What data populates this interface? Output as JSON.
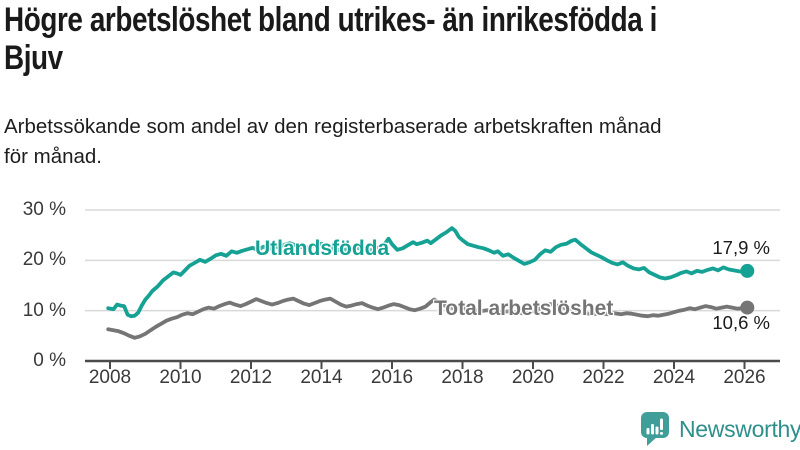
{
  "title": {
    "lines": [
      "Högre arbetslöshet bland utrikes- än inrikesfödda i",
      "Bjuv"
    ]
  },
  "subtitle": {
    "lines": [
      "Arbetssökande som andel av den registerbaserade arbetskraften månad",
      "för månad."
    ]
  },
  "colors": {
    "accent_teal": "#15a294",
    "series_gray": "#757575",
    "grid": "#d9d9d9",
    "axis": "#4b4b4b",
    "text": "#1a1a1a",
    "tick_label": "#3a3a3a",
    "logo_text": "#2e8f8b",
    "logo_icon": "#3f9e98"
  },
  "branding": {
    "name": "Newsworthy",
    "icon": "newsworthy-speech-bubble-chart-icon"
  },
  "chart_data": {
    "type": "line",
    "title": "Högre arbetslöshet bland utrikes- än inrikesfödda i Bjuv",
    "subtitle": "Arbetssökande som andel av den registerbaserade arbetskraften månad för månad.",
    "grid": "horizontal",
    "legend": "inline-labels",
    "x_axis": {
      "ticks": [
        2008,
        2010,
        2012,
        2014,
        2016,
        2018,
        2020,
        2022,
        2024,
        2026
      ],
      "range": [
        2007.3,
        2027.0
      ]
    },
    "y_axis": {
      "ticks": [
        0,
        10,
        20,
        30
      ],
      "tick_labels": [
        "0 %",
        "10 %",
        "20 %",
        "30 %"
      ],
      "range": [
        0,
        33
      ],
      "unit": "%"
    },
    "series": [
      {
        "name": "Utlandsfödda",
        "color": "#15a294",
        "end_label": "17,9 %",
        "end_value": 17.9,
        "points": [
          [
            2007.95,
            10.5
          ],
          [
            2008.1,
            10.3
          ],
          [
            2008.2,
            11.2
          ],
          [
            2008.3,
            11.0
          ],
          [
            2008.4,
            10.9
          ],
          [
            2008.5,
            9.2
          ],
          [
            2008.6,
            8.9
          ],
          [
            2008.7,
            9.0
          ],
          [
            2008.8,
            9.6
          ],
          [
            2008.9,
            11.0
          ],
          [
            2009.0,
            12.2
          ],
          [
            2009.1,
            13.0
          ],
          [
            2009.2,
            13.9
          ],
          [
            2009.35,
            14.8
          ],
          [
            2009.5,
            16.0
          ],
          [
            2009.65,
            16.8
          ],
          [
            2009.8,
            17.6
          ],
          [
            2009.9,
            17.4
          ],
          [
            2010.0,
            17.1
          ],
          [
            2010.1,
            17.8
          ],
          [
            2010.25,
            18.9
          ],
          [
            2010.4,
            19.5
          ],
          [
            2010.55,
            20.1
          ],
          [
            2010.7,
            19.7
          ],
          [
            2010.85,
            20.3
          ],
          [
            2011.0,
            21.0
          ],
          [
            2011.15,
            21.3
          ],
          [
            2011.3,
            20.9
          ],
          [
            2011.45,
            21.8
          ],
          [
            2011.6,
            21.5
          ],
          [
            2011.75,
            21.9
          ],
          [
            2011.9,
            22.2
          ],
          [
            2012.05,
            22.5
          ],
          [
            2012.2,
            22.0
          ],
          [
            2012.35,
            22.7
          ],
          [
            2012.5,
            22.3
          ],
          [
            2012.65,
            22.8
          ],
          [
            2012.8,
            22.6
          ],
          [
            2012.95,
            23.1
          ],
          [
            2013.1,
            23.4
          ],
          [
            2013.25,
            23.0
          ],
          [
            2013.4,
            22.7
          ],
          [
            2013.55,
            22.4
          ],
          [
            2013.7,
            22.8
          ],
          [
            2013.85,
            23.1
          ],
          [
            2014.0,
            23.3
          ],
          [
            2014.15,
            22.7
          ],
          [
            2014.3,
            22.4
          ],
          [
            2014.45,
            22.1
          ],
          [
            2014.6,
            21.9
          ],
          [
            2014.75,
            22.3
          ],
          [
            2014.9,
            22.6
          ],
          [
            2015.05,
            22.4
          ],
          [
            2015.2,
            22.1
          ],
          [
            2015.35,
            21.9
          ],
          [
            2015.5,
            22.3
          ],
          [
            2015.65,
            22.6
          ],
          [
            2015.8,
            23.3
          ],
          [
            2015.9,
            24.3
          ],
          [
            2016.0,
            23.2
          ],
          [
            2016.15,
            22.1
          ],
          [
            2016.3,
            22.4
          ],
          [
            2016.45,
            23.0
          ],
          [
            2016.6,
            23.6
          ],
          [
            2016.7,
            23.2
          ],
          [
            2016.85,
            23.5
          ],
          [
            2017.0,
            23.9
          ],
          [
            2017.1,
            23.4
          ],
          [
            2017.25,
            24.2
          ],
          [
            2017.4,
            25.0
          ],
          [
            2017.55,
            25.6
          ],
          [
            2017.7,
            26.4
          ],
          [
            2017.8,
            25.8
          ],
          [
            2017.9,
            24.6
          ],
          [
            2018.0,
            24.0
          ],
          [
            2018.15,
            23.2
          ],
          [
            2018.3,
            22.9
          ],
          [
            2018.45,
            22.6
          ],
          [
            2018.6,
            22.4
          ],
          [
            2018.75,
            22.0
          ],
          [
            2018.9,
            21.5
          ],
          [
            2019.0,
            21.8
          ],
          [
            2019.15,
            20.9
          ],
          [
            2019.3,
            21.2
          ],
          [
            2019.45,
            20.5
          ],
          [
            2019.6,
            19.9
          ],
          [
            2019.75,
            19.3
          ],
          [
            2019.9,
            19.6
          ],
          [
            2020.05,
            20.1
          ],
          [
            2020.2,
            21.2
          ],
          [
            2020.35,
            22.0
          ],
          [
            2020.5,
            21.7
          ],
          [
            2020.65,
            22.6
          ],
          [
            2020.8,
            23.1
          ],
          [
            2020.95,
            23.3
          ],
          [
            2021.1,
            23.9
          ],
          [
            2021.2,
            24.1
          ],
          [
            2021.35,
            23.2
          ],
          [
            2021.5,
            22.4
          ],
          [
            2021.65,
            21.6
          ],
          [
            2021.8,
            21.1
          ],
          [
            2021.95,
            20.6
          ],
          [
            2022.1,
            20.0
          ],
          [
            2022.25,
            19.5
          ],
          [
            2022.4,
            19.2
          ],
          [
            2022.55,
            19.6
          ],
          [
            2022.7,
            18.9
          ],
          [
            2022.85,
            18.4
          ],
          [
            2023.0,
            18.2
          ],
          [
            2023.15,
            18.5
          ],
          [
            2023.3,
            17.6
          ],
          [
            2023.45,
            17.1
          ],
          [
            2023.6,
            16.6
          ],
          [
            2023.75,
            16.4
          ],
          [
            2023.9,
            16.6
          ],
          [
            2024.05,
            17.0
          ],
          [
            2024.2,
            17.5
          ],
          [
            2024.35,
            17.8
          ],
          [
            2024.5,
            17.4
          ],
          [
            2024.65,
            17.9
          ],
          [
            2024.8,
            17.7
          ],
          [
            2024.95,
            18.1
          ],
          [
            2025.1,
            18.4
          ],
          [
            2025.25,
            18.0
          ],
          [
            2025.4,
            18.6
          ],
          [
            2025.55,
            18.2
          ],
          [
            2025.7,
            18.0
          ],
          [
            2025.85,
            17.8
          ],
          [
            2026.0,
            17.7
          ],
          [
            2026.08,
            17.9
          ]
        ]
      },
      {
        "name": "Total arbetslöshet",
        "color": "#757575",
        "end_label": "10,6 %",
        "end_value": 10.6,
        "points": [
          [
            2007.95,
            6.3
          ],
          [
            2008.1,
            6.1
          ],
          [
            2008.25,
            5.9
          ],
          [
            2008.4,
            5.5
          ],
          [
            2008.55,
            5.0
          ],
          [
            2008.7,
            4.6
          ],
          [
            2008.85,
            4.9
          ],
          [
            2009.0,
            5.4
          ],
          [
            2009.15,
            6.1
          ],
          [
            2009.3,
            6.8
          ],
          [
            2009.45,
            7.4
          ],
          [
            2009.6,
            8.0
          ],
          [
            2009.75,
            8.4
          ],
          [
            2009.9,
            8.7
          ],
          [
            2010.05,
            9.2
          ],
          [
            2010.2,
            9.5
          ],
          [
            2010.35,
            9.3
          ],
          [
            2010.5,
            9.8
          ],
          [
            2010.65,
            10.3
          ],
          [
            2010.8,
            10.6
          ],
          [
            2010.95,
            10.4
          ],
          [
            2011.1,
            10.9
          ],
          [
            2011.25,
            11.3
          ],
          [
            2011.4,
            11.6
          ],
          [
            2011.55,
            11.2
          ],
          [
            2011.7,
            10.9
          ],
          [
            2011.85,
            11.3
          ],
          [
            2012.0,
            11.8
          ],
          [
            2012.15,
            12.3
          ],
          [
            2012.3,
            11.9
          ],
          [
            2012.45,
            11.5
          ],
          [
            2012.6,
            11.2
          ],
          [
            2012.75,
            11.5
          ],
          [
            2012.9,
            11.9
          ],
          [
            2013.05,
            12.2
          ],
          [
            2013.2,
            12.4
          ],
          [
            2013.35,
            11.9
          ],
          [
            2013.5,
            11.4
          ],
          [
            2013.65,
            11.1
          ],
          [
            2013.8,
            11.5
          ],
          [
            2013.95,
            11.9
          ],
          [
            2014.1,
            12.2
          ],
          [
            2014.25,
            12.4
          ],
          [
            2014.4,
            11.8
          ],
          [
            2014.55,
            11.2
          ],
          [
            2014.7,
            10.8
          ],
          [
            2014.85,
            11.0
          ],
          [
            2015.0,
            11.3
          ],
          [
            2015.15,
            11.5
          ],
          [
            2015.3,
            11.0
          ],
          [
            2015.45,
            10.6
          ],
          [
            2015.6,
            10.3
          ],
          [
            2015.75,
            10.6
          ],
          [
            2015.9,
            11.0
          ],
          [
            2016.05,
            11.3
          ],
          [
            2016.2,
            11.1
          ],
          [
            2016.35,
            10.7
          ],
          [
            2016.5,
            10.3
          ],
          [
            2016.65,
            10.1
          ],
          [
            2016.8,
            10.4
          ],
          [
            2016.95,
            10.8
          ],
          [
            2017.1,
            11.7
          ],
          [
            2017.2,
            12.2
          ],
          [
            2017.35,
            11.6
          ],
          [
            2017.5,
            11.0
          ],
          [
            2017.65,
            10.6
          ],
          [
            2017.8,
            10.4
          ],
          [
            2017.95,
            10.6
          ],
          [
            2018.1,
            10.3
          ],
          [
            2018.3,
            10.1
          ],
          [
            2018.5,
            9.9
          ],
          [
            2018.7,
            10.1
          ],
          [
            2018.9,
            9.8
          ],
          [
            2019.1,
            9.7
          ],
          [
            2019.3,
            9.9
          ],
          [
            2019.5,
            9.6
          ],
          [
            2019.7,
            9.5
          ],
          [
            2019.9,
            9.7
          ],
          [
            2020.1,
            10.0
          ],
          [
            2020.3,
            10.9
          ],
          [
            2020.5,
            11.3
          ],
          [
            2020.7,
            11.0
          ],
          [
            2020.9,
            10.5
          ],
          [
            2021.1,
            10.1
          ],
          [
            2021.3,
            9.8
          ],
          [
            2021.5,
            9.5
          ],
          [
            2021.7,
            9.3
          ],
          [
            2021.9,
            9.5
          ],
          [
            2022.1,
            9.3
          ],
          [
            2022.3,
            9.5
          ],
          [
            2022.5,
            9.3
          ],
          [
            2022.65,
            9.5
          ],
          [
            2022.8,
            9.4
          ],
          [
            2022.95,
            9.2
          ],
          [
            2023.1,
            9.0
          ],
          [
            2023.25,
            8.9
          ],
          [
            2023.4,
            9.1
          ],
          [
            2023.55,
            9.0
          ],
          [
            2023.7,
            9.2
          ],
          [
            2023.85,
            9.4
          ],
          [
            2024.0,
            9.7
          ],
          [
            2024.15,
            10.0
          ],
          [
            2024.3,
            10.2
          ],
          [
            2024.45,
            10.5
          ],
          [
            2024.6,
            10.3
          ],
          [
            2024.75,
            10.6
          ],
          [
            2024.9,
            10.9
          ],
          [
            2025.05,
            10.7
          ],
          [
            2025.2,
            10.4
          ],
          [
            2025.35,
            10.6
          ],
          [
            2025.5,
            10.8
          ],
          [
            2025.65,
            10.6
          ],
          [
            2025.8,
            10.4
          ],
          [
            2025.95,
            10.5
          ],
          [
            2026.08,
            10.6
          ]
        ]
      }
    ]
  }
}
